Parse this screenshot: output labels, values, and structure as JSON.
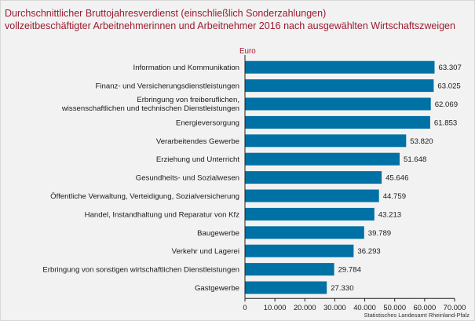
{
  "title_line1": "Durchschnittlicher Bruttojahresverdienst (einschließlich Sonderzahlungen)",
  "title_line2": "vollzeitbeschäftigter Arbeitnehmerinnen und Arbeitnehmer 2016 nach ausgewählten Wirtschaftszweigen",
  "source": "Statistisches Landesamt Rheinland-Pfalz",
  "colors": {
    "bar": "#0071a4",
    "title": "#9b1b30",
    "background": "#f2f2f2"
  },
  "chart_data": {
    "type": "bar",
    "orientation": "horizontal",
    "title": "Durchschnittlicher Bruttojahresverdienst (einschließlich Sonderzahlungen) vollzeitbeschäftigter Arbeitnehmerinnen und Arbeitnehmer 2016 nach ausgewählten Wirtschaftszweigen",
    "unit_label": "Euro",
    "categories": [
      [
        "Information und Kommunikation"
      ],
      [
        "Finanz- und Versicherungsdienstleistungen"
      ],
      [
        "Erbringung von freiberuflichen,",
        "wissenschaftlichen und technischen Dienstleistungen"
      ],
      [
        "Energieversorgung"
      ],
      [
        "Verarbeitendes Gewerbe"
      ],
      [
        "Erziehung und Unterricht"
      ],
      [
        "Gesundheits- und Sozialwesen"
      ],
      [
        "Öffentliche Verwaltung, Verteidigung, Sozialversicherung"
      ],
      [
        "Handel, Instandhaltung und Reparatur von Kfz"
      ],
      [
        "Baugewerbe"
      ],
      [
        "Verkehr und Lagerei"
      ],
      [
        "Erbringung von sonstigen wirtschaftlichen Dienstleistungen"
      ],
      [
        "Gastgewerbe"
      ]
    ],
    "values": [
      63307,
      63025,
      62069,
      61853,
      53820,
      51648,
      45646,
      44759,
      43213,
      39789,
      36293,
      29784,
      27330
    ],
    "value_labels": [
      "63.307",
      "63.025",
      "62.069",
      "61.853",
      "53.820",
      "51.648",
      "45.646",
      "44.759",
      "43.213",
      "39.789",
      "36.293",
      "29.784",
      "27.330"
    ],
    "xlim": [
      0,
      70000
    ],
    "xticks": [
      0,
      10000,
      20000,
      30000,
      40000,
      50000,
      60000,
      70000
    ],
    "xtick_labels": [
      "0",
      "10.000",
      "20.000",
      "30.000",
      "40.000",
      "50.000",
      "60.000",
      "70.000"
    ],
    "grid": false,
    "legend": "none"
  }
}
